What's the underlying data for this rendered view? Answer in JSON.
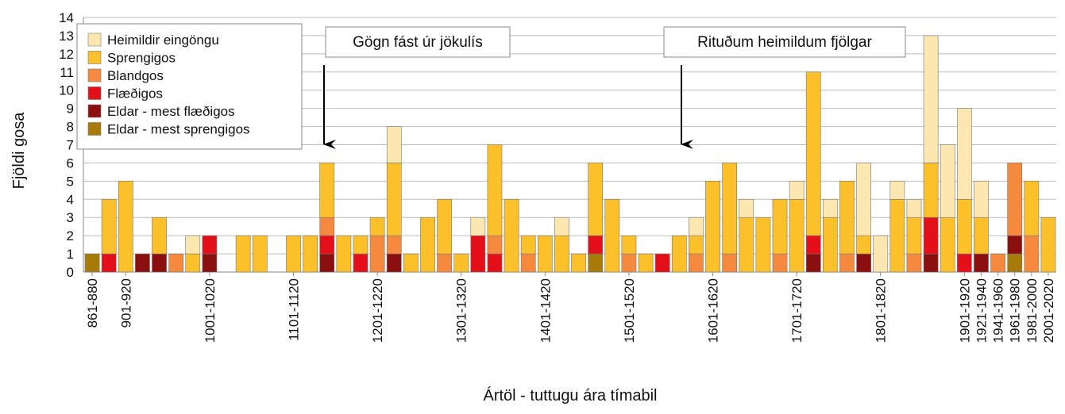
{
  "chart_data": {
    "type": "stacked_bar",
    "ylabel": "Fjöldi gosa",
    "xlabel": "Ártöl - tuttugu ára tímabil",
    "annotations": [
      "Gögn fást úr jökulís",
      "Rituðum heimildum fjölgar"
    ],
    "categories": [
      "861-880",
      null,
      "901-920",
      null,
      null,
      null,
      null,
      "1001-1020",
      null,
      null,
      null,
      null,
      "1101-1120",
      null,
      null,
      null,
      null,
      "1201-1220",
      null,
      null,
      null,
      null,
      "1301-1320",
      null,
      null,
      null,
      null,
      "1401-1420",
      null,
      null,
      null,
      null,
      "1501-1520",
      null,
      null,
      null,
      null,
      "1601-1620",
      null,
      null,
      null,
      null,
      "1701-1720",
      null,
      null,
      null,
      null,
      "1801-1820",
      null,
      null,
      null,
      null,
      "1901-1920",
      "1921-1940",
      "1941-1960",
      "1961-1980",
      "1981-2000",
      "2001-2020"
    ],
    "series": [
      {
        "name": "Heimildir eingöngu",
        "color": "#fde7b1",
        "values": [
          0,
          0,
          0,
          0,
          0,
          0,
          1,
          0,
          0,
          0,
          0,
          0,
          0,
          0,
          0,
          0,
          0,
          0,
          2,
          0,
          0,
          0,
          0,
          1,
          0,
          0,
          0,
          0,
          1,
          0,
          0,
          0,
          0,
          0,
          0,
          0,
          1,
          0,
          0,
          1,
          0,
          0,
          1,
          0,
          1,
          0,
          4,
          2,
          1,
          1,
          7,
          4,
          5,
          2,
          0,
          0,
          0,
          0
        ]
      },
      {
        "name": "Sprengigos",
        "color": "#fbc02a",
        "values": [
          0,
          3,
          5,
          0,
          2,
          0,
          1,
          0,
          0,
          2,
          2,
          0,
          2,
          2,
          3,
          2,
          1,
          1,
          4,
          1,
          3,
          3,
          1,
          0,
          5,
          4,
          1,
          2,
          2,
          1,
          4,
          4,
          1,
          1,
          0,
          2,
          1,
          5,
          5,
          3,
          3,
          3,
          4,
          9,
          3,
          4,
          1,
          0,
          4,
          2,
          3,
          3,
          3,
          2,
          0,
          0,
          3,
          3
        ]
      },
      {
        "name": "Blandgos",
        "color": "#f5893e",
        "values": [
          0,
          0,
          0,
          0,
          0,
          1,
          0,
          0,
          0,
          0,
          0,
          0,
          0,
          0,
          1,
          0,
          0,
          2,
          1,
          0,
          0,
          1,
          0,
          0,
          1,
          0,
          1,
          0,
          0,
          0,
          0,
          0,
          1,
          0,
          0,
          0,
          1,
          0,
          1,
          0,
          0,
          1,
          0,
          0,
          0,
          1,
          0,
          0,
          0,
          1,
          0,
          0,
          0,
          0,
          1,
          4,
          2,
          0
        ]
      },
      {
        "name": "Flæðigos",
        "color": "#e3101a",
        "values": [
          0,
          1,
          0,
          0,
          0,
          0,
          0,
          1,
          0,
          0,
          0,
          0,
          0,
          0,
          1,
          0,
          1,
          0,
          0,
          0,
          0,
          0,
          0,
          2,
          1,
          0,
          0,
          0,
          0,
          0,
          1,
          0,
          0,
          0,
          1,
          0,
          0,
          0,
          0,
          0,
          0,
          0,
          0,
          1,
          0,
          0,
          0,
          0,
          0,
          0,
          2,
          0,
          1,
          0,
          0,
          0,
          0,
          0
        ]
      },
      {
        "name": "Eldar - mest flæðigos",
        "color": "#8c0f0f",
        "values": [
          0,
          0,
          0,
          1,
          1,
          0,
          0,
          1,
          0,
          0,
          0,
          0,
          0,
          0,
          1,
          0,
          0,
          0,
          1,
          0,
          0,
          0,
          0,
          0,
          0,
          0,
          0,
          0,
          0,
          0,
          0,
          0,
          0,
          0,
          0,
          0,
          0,
          0,
          0,
          0,
          0,
          0,
          0,
          1,
          0,
          0,
          1,
          0,
          0,
          0,
          1,
          0,
          0,
          1,
          0,
          1,
          0,
          0
        ]
      },
      {
        "name": "Eldar - mest sprengigos",
        "color": "#a77b08",
        "values": [
          1,
          0,
          0,
          0,
          0,
          0,
          0,
          0,
          0,
          0,
          0,
          0,
          0,
          0,
          0,
          0,
          0,
          0,
          0,
          0,
          0,
          0,
          0,
          0,
          0,
          0,
          0,
          0,
          0,
          0,
          1,
          0,
          0,
          0,
          0,
          0,
          0,
          0,
          0,
          0,
          0,
          0,
          0,
          0,
          0,
          0,
          0,
          0,
          0,
          0,
          0,
          0,
          0,
          0,
          0,
          1,
          0,
          0
        ]
      }
    ],
    "ylim": [
      0,
      14
    ],
    "yticks": [
      0,
      1,
      2,
      3,
      4,
      5,
      6,
      7,
      8,
      9,
      10,
      11,
      12,
      13,
      14
    ],
    "grid": true,
    "legend": "upper-left"
  }
}
